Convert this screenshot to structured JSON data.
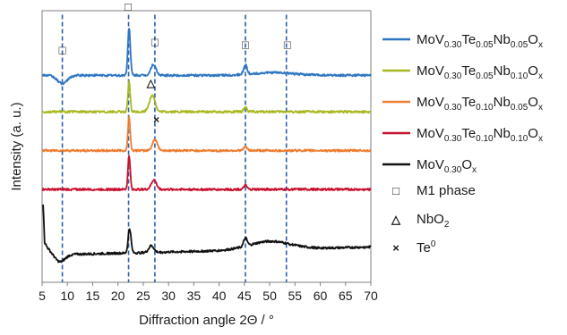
{
  "chart_data": {
    "type": "line",
    "title": "",
    "xlabel": "Diffraction angle 2Θ / °",
    "ylabel": "Intensity (a. u.)",
    "xlim": [
      5,
      70
    ],
    "xticks": [
      "5",
      "10",
      "15",
      "20",
      "25",
      "30",
      "35",
      "40",
      "45",
      "50",
      "55",
      "60",
      "65",
      "70"
    ],
    "y_ticks_shown": false,
    "grid": false,
    "legend_position": "right",
    "series": [
      {
        "name": "MoV0.30Te0.05Nb0.05Ox",
        "color": "#2e75c3",
        "baseline": 0.762,
        "label_parts": [
          [
            "MoV",
            ""
          ],
          [
            "0.30",
            "s"
          ],
          [
            "Te",
            ""
          ],
          [
            "0.05",
            "s"
          ],
          [
            "Nb",
            ""
          ],
          [
            "0.05",
            "s"
          ],
          [
            "O",
            ""
          ],
          [
            "x",
            "s"
          ]
        ],
        "features": [
          {
            "type": "dip",
            "x": 9.0,
            "h": 0.03
          },
          {
            "type": "peak",
            "x": 22.2,
            "h": 0.175,
            "w": 0.25
          },
          {
            "type": "peak",
            "x": 27.0,
            "h": 0.04,
            "w": 0.5
          },
          {
            "type": "peak",
            "x": 45.2,
            "h": 0.035,
            "w": 0.35
          },
          {
            "type": "hump",
            "x": 51,
            "h": 0.01
          }
        ]
      },
      {
        "name": "MoV0.30Te0.05Nb0.10Ox",
        "color": "#a8b820",
        "baseline": 0.628,
        "label_parts": [
          [
            "MoV",
            ""
          ],
          [
            "0.30",
            "s"
          ],
          [
            "Te",
            ""
          ],
          [
            "0.05",
            "s"
          ],
          [
            "Nb",
            ""
          ],
          [
            "0.10",
            "s"
          ],
          [
            "O",
            ""
          ],
          [
            "x",
            "s"
          ]
        ],
        "features": [
          {
            "type": "peak",
            "x": 22.2,
            "h": 0.11,
            "w": 0.22
          },
          {
            "type": "peak",
            "x": 26.5,
            "h": 0.04,
            "w": 0.5
          },
          {
            "type": "peak",
            "x": 27.1,
            "h": 0.035,
            "w": 0.4
          },
          {
            "type": "peak",
            "x": 45.2,
            "h": 0.018,
            "w": 0.3
          }
        ]
      },
      {
        "name": "MoV0.30Te0.10Nb0.05Ox",
        "color": "#ed7d31",
        "baseline": 0.485,
        "label_parts": [
          [
            "MoV",
            ""
          ],
          [
            "0.30",
            "s"
          ],
          [
            "Te",
            ""
          ],
          [
            "0.10",
            "s"
          ],
          [
            "Nb",
            ""
          ],
          [
            "0.05",
            "s"
          ],
          [
            "O",
            ""
          ],
          [
            "x",
            "s"
          ]
        ],
        "features": [
          {
            "type": "peak",
            "x": 22.2,
            "h": 0.125,
            "w": 0.22
          },
          {
            "type": "peak",
            "x": 27.3,
            "h": 0.04,
            "w": 0.5
          },
          {
            "type": "peak",
            "x": 45.2,
            "h": 0.015,
            "w": 0.3
          }
        ]
      },
      {
        "name": "MoV0.30Te0.10Nb0.10Ox",
        "color": "#c8102e",
        "baseline": 0.342,
        "label_parts": [
          [
            "MoV",
            ""
          ],
          [
            "0.30",
            "s"
          ],
          [
            "Te",
            ""
          ],
          [
            "0.10",
            "s"
          ],
          [
            "Nb",
            ""
          ],
          [
            "0.10",
            "s"
          ],
          [
            "O",
            ""
          ],
          [
            "x",
            "s"
          ]
        ],
        "features": [
          {
            "type": "peak",
            "x": 22.2,
            "h": 0.125,
            "w": 0.22
          },
          {
            "type": "peak",
            "x": 27.1,
            "h": 0.035,
            "w": 0.5
          },
          {
            "type": "peak",
            "x": 45.2,
            "h": 0.015,
            "w": 0.3
          }
        ]
      },
      {
        "name": "MoV0.30Ox",
        "color": "#111111",
        "baseline": 0.1,
        "label_parts": [
          [
            "MoV",
            ""
          ],
          [
            "0.30",
            "s"
          ],
          [
            "O",
            ""
          ],
          [
            "x",
            "s"
          ]
        ],
        "features": [
          {
            "type": "start",
            "x": 5.2,
            "h": 0.13
          },
          {
            "type": "decay",
            "x": 5.2,
            "h": 0.06
          },
          {
            "type": "dip",
            "x": 8.5,
            "h": 0.03
          },
          {
            "type": "peak",
            "x": 22.3,
            "h": 0.09,
            "w": 0.28
          },
          {
            "type": "peak",
            "x": 26.6,
            "h": 0.025,
            "w": 0.5
          },
          {
            "type": "peak",
            "x": 45.2,
            "h": 0.03,
            "w": 0.35
          },
          {
            "type": "hump",
            "x": 50,
            "h": 0.03
          },
          {
            "type": "slope",
            "h": 0.03
          }
        ]
      }
    ],
    "reference_lines": {
      "x": [
        9.0,
        22.1,
        27.3,
        45.2,
        53.3
      ],
      "color": "#2e5fa8",
      "style": "dashed"
    },
    "markers": [
      {
        "symbol": "□",
        "kind": "M1 phase",
        "x": 9.0,
        "level": 0.84
      },
      {
        "symbol": "□",
        "kind": "M1 phase",
        "x": 22.0,
        "level": 1.0
      },
      {
        "symbol": "□",
        "kind": "M1 phase",
        "x": 27.3,
        "level": 0.87
      },
      {
        "symbol": "□",
        "kind": "M1 phase",
        "x": 45.2,
        "level": 0.86
      },
      {
        "symbol": "□",
        "kind": "M1 phase",
        "x": 53.5,
        "level": 0.86
      },
      {
        "symbol": "△",
        "kind": "NbO2",
        "x": 26.5,
        "level": 0.72
      },
      {
        "symbol": "×",
        "kind": "Te0",
        "x": 27.6,
        "level": 0.585
      }
    ],
    "symbol_legend": [
      {
        "symbol": "□",
        "label_parts": [
          [
            "M1 phase",
            ""
          ]
        ]
      },
      {
        "symbol": "△",
        "label_parts": [
          [
            "NbO",
            ""
          ],
          [
            "2",
            "s"
          ]
        ]
      },
      {
        "symbol": "×",
        "label_parts": [
          [
            "Te",
            ""
          ],
          [
            "0",
            "u"
          ]
        ]
      }
    ]
  }
}
